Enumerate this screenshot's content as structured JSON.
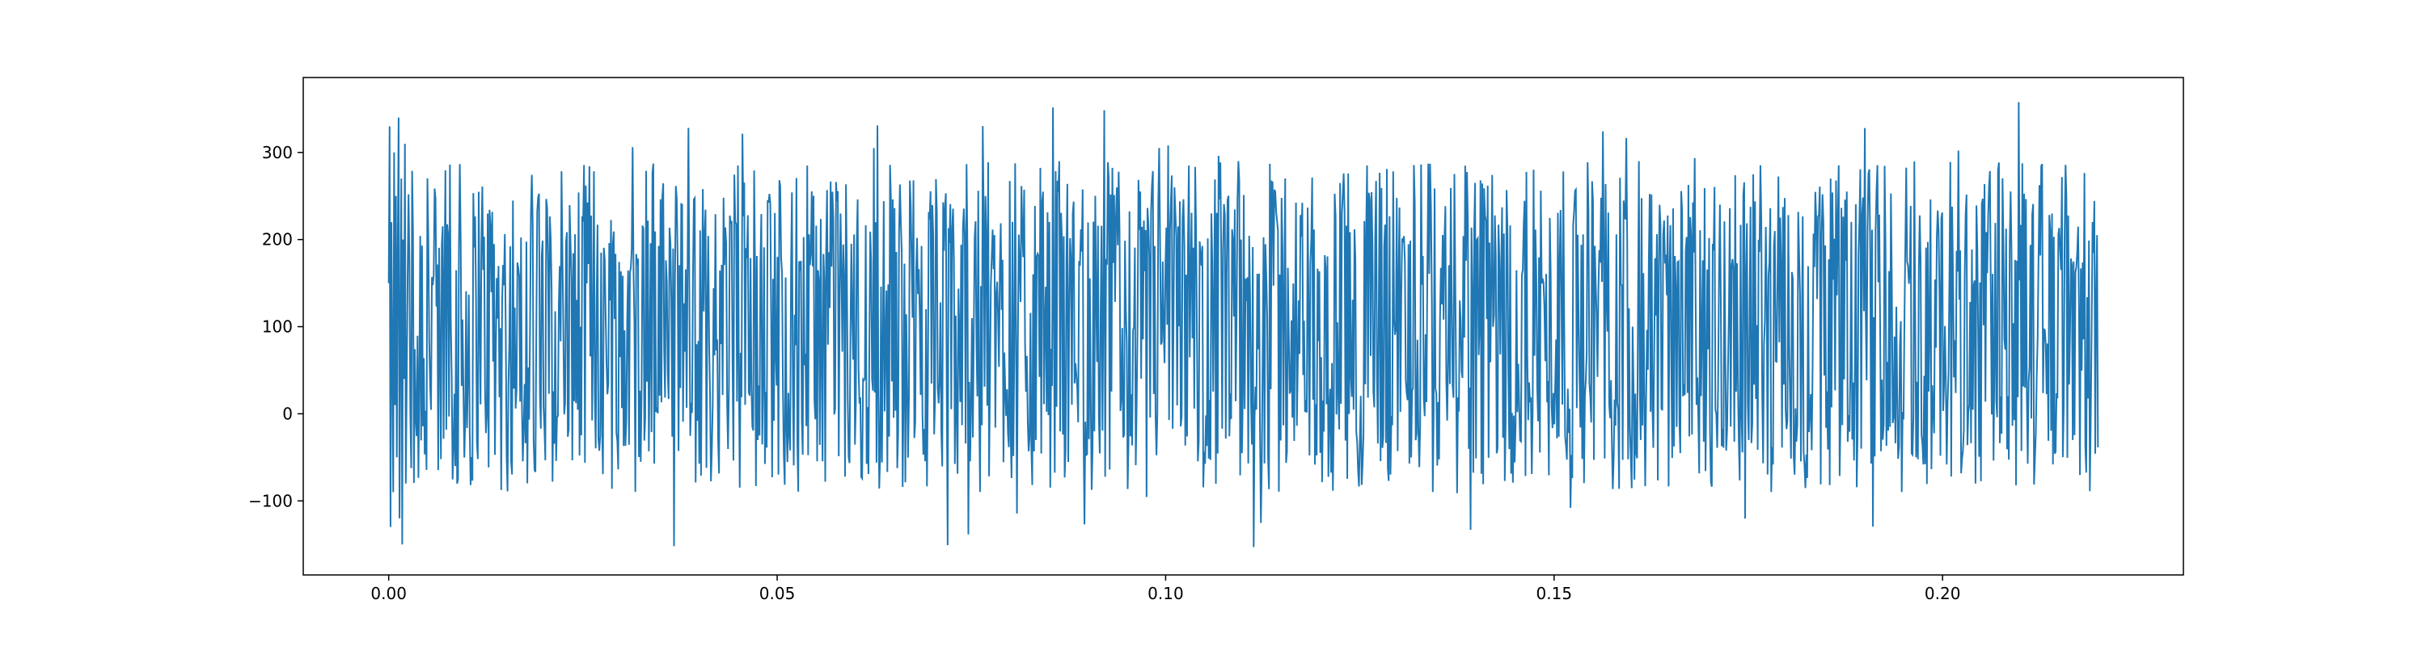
{
  "chart_data": {
    "type": "line",
    "title": "",
    "xlabel": "",
    "ylabel": "",
    "grid": false,
    "legend": "none",
    "xlim": [
      -0.011,
      0.231
    ],
    "ylim": [
      -185,
      386
    ],
    "x_ticks": [
      {
        "value": 0.0,
        "label": "0.00"
      },
      {
        "value": 0.05,
        "label": "0.05"
      },
      {
        "value": 0.1,
        "label": "0.10"
      },
      {
        "value": 0.15,
        "label": "0.15"
      },
      {
        "value": 0.2,
        "label": "0.20"
      }
    ],
    "y_ticks": [
      {
        "value": -100,
        "label": "−100"
      },
      {
        "value": 0,
        "label": "0"
      },
      {
        "value": 100,
        "label": "100"
      },
      {
        "value": 200,
        "label": "200"
      },
      {
        "value": 300,
        "label": "300"
      }
    ],
    "series": [
      {
        "color": "#1f77b4",
        "x_start": 0.0,
        "x_end": 0.22,
        "num_points": 1900,
        "center": 100,
        "max": 360,
        "min": -160,
        "values_sample": [
          150,
          330,
          -130,
          220,
          60,
          -90,
          300,
          10,
          250,
          -50,
          180,
          340,
          -120,
          90,
          270,
          -150,
          200,
          40,
          310,
          -80
        ]
      }
    ]
  }
}
